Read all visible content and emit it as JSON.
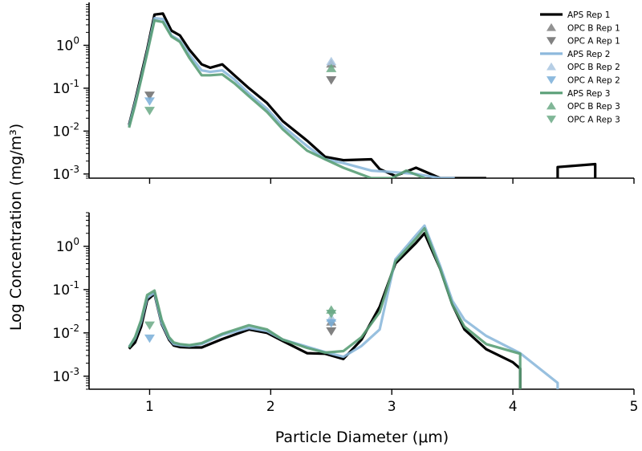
{
  "chart_data": {
    "type": "line",
    "xlabel": "Particle Diameter (μm)",
    "ylabel": "Log Concentration (mg/m³)",
    "x_ticks": [
      "1",
      "2",
      "3",
      "4",
      "5"
    ],
    "xlim": [
      0.5,
      5
    ],
    "y_scale": "log",
    "legend_placement": "top-right of upper panel",
    "panels": [
      {
        "ylim": [
          0.0008,
          10
        ],
        "y_ticks": [
          {
            "base": "10",
            "exp": "0"
          },
          {
            "base": "10",
            "exp": "-1"
          },
          {
            "base": "10",
            "exp": "-2"
          },
          {
            "base": "10",
            "exp": "-3"
          }
        ],
        "lines": [
          {
            "name": "APS Rep 1",
            "color": "#000000",
            "width": 3.2,
            "points": [
              [
                0.83,
                0.014
              ],
              [
                0.88,
                0.05
              ],
              [
                0.93,
                0.2
              ],
              [
                0.98,
                0.8
              ],
              [
                1.04,
                5.2
              ],
              [
                1.11,
                5.5
              ],
              [
                1.18,
                2.2
              ],
              [
                1.25,
                1.7
              ],
              [
                1.33,
                0.78
              ],
              [
                1.43,
                0.36
              ],
              [
                1.5,
                0.3
              ],
              [
                1.6,
                0.36
              ],
              [
                1.7,
                0.2
              ],
              [
                1.82,
                0.1
              ],
              [
                1.97,
                0.045
              ],
              [
                2.1,
                0.017
              ],
              [
                2.3,
                0.006
              ],
              [
                2.45,
                0.0025
              ],
              [
                2.6,
                0.0021
              ],
              [
                2.83,
                0.0022
              ],
              [
                2.9,
                0.0013
              ],
              [
                3.03,
                0.0009
              ],
              [
                3.2,
                0.0014
              ],
              [
                3.4,
                0.0008
              ],
              [
                3.6,
                0.0006
              ],
              [
                3.78,
                0.00045
              ],
              [
                3.78,
                0.0001
              ]
            ]
          },
          {
            "name": "APS Rep 1 (tail)",
            "color": "#000000",
            "width": 3.2,
            "points": [
              [
                4.37,
                0.0001
              ],
              [
                4.37,
                0.00145
              ],
              [
                4.68,
                0.0017
              ],
              [
                4.68,
                0.0001
              ]
            ]
          },
          {
            "name": "APS Rep 2",
            "color": "#8db9dc",
            "width": 3.2,
            "points": [
              [
                0.83,
                0.013
              ],
              [
                0.88,
                0.045
              ],
              [
                0.93,
                0.17
              ],
              [
                0.98,
                0.7
              ],
              [
                1.04,
                4.3
              ],
              [
                1.11,
                4.1
              ],
              [
                1.18,
                1.7
              ],
              [
                1.25,
                1.3
              ],
              [
                1.33,
                0.6
              ],
              [
                1.43,
                0.26
              ],
              [
                1.5,
                0.24
              ],
              [
                1.6,
                0.26
              ],
              [
                1.7,
                0.16
              ],
              [
                1.82,
                0.075
              ],
              [
                1.97,
                0.033
              ],
              [
                2.1,
                0.013
              ],
              [
                2.3,
                0.0045
              ],
              [
                2.45,
                0.0022
              ],
              [
                2.6,
                0.0018
              ],
              [
                2.83,
                0.0012
              ],
              [
                3.03,
                0.0011
              ],
              [
                3.2,
                0.001
              ],
              [
                3.4,
                0.0006
              ],
              [
                3.52,
                0.0004
              ],
              [
                3.52,
                0.0001
              ]
            ]
          },
          {
            "name": "APS Rep 3",
            "color": "#5a9f77",
            "width": 3.2,
            "points": [
              [
                0.83,
                0.012
              ],
              [
                0.88,
                0.04
              ],
              [
                0.93,
                0.16
              ],
              [
                0.98,
                0.65
              ],
              [
                1.04,
                3.8
              ],
              [
                1.11,
                3.5
              ],
              [
                1.18,
                1.6
              ],
              [
                1.25,
                1.2
              ],
              [
                1.33,
                0.5
              ],
              [
                1.43,
                0.2
              ],
              [
                1.5,
                0.2
              ],
              [
                1.6,
                0.21
              ],
              [
                1.7,
                0.13
              ],
              [
                1.82,
                0.065
              ],
              [
                1.97,
                0.028
              ],
              [
                2.1,
                0.011
              ],
              [
                2.3,
                0.0035
              ],
              [
                2.45,
                0.0022
              ],
              [
                2.6,
                0.0014
              ],
              [
                2.83,
                0.00065
              ],
              [
                2.9,
                0.0005
              ],
              [
                3.0,
                0.00075
              ],
              [
                3.12,
                0.0012
              ],
              [
                3.27,
                0.0005
              ],
              [
                3.27,
                0.0001
              ]
            ]
          }
        ],
        "markers": [
          {
            "name": "OPC B Rep 1",
            "shape": "up",
            "color": "#7f7f7f",
            "points": [
              [
                2.5,
                0.37
              ]
            ]
          },
          {
            "name": "OPC A Rep 1",
            "shape": "down",
            "color": "#6b6b6b",
            "points": [
              [
                1.0,
                0.068
              ],
              [
                2.5,
                0.155
              ]
            ]
          },
          {
            "name": "OPC B Rep 2",
            "shape": "up",
            "color": "#a9c6e0",
            "points": [
              [
                2.5,
                0.42
              ]
            ]
          },
          {
            "name": "OPC A Rep 2",
            "shape": "down",
            "color": "#79aed8",
            "points": [
              [
                1.0,
                0.05
              ]
            ]
          },
          {
            "name": "OPC B Rep 3",
            "shape": "up",
            "color": "#6aa985",
            "points": [
              [
                2.5,
                0.29
              ]
            ]
          },
          {
            "name": "OPC A Rep 3",
            "shape": "down",
            "color": "#6aa985",
            "points": [
              [
                1.0,
                0.03
              ]
            ]
          }
        ]
      },
      {
        "ylim": [
          0.0005,
          6
        ],
        "y_ticks": [
          {
            "base": "10",
            "exp": "0"
          },
          {
            "base": "10",
            "exp": "-1"
          },
          {
            "base": "10",
            "exp": "-2"
          },
          {
            "base": "10",
            "exp": "-3"
          }
        ],
        "lines": [
          {
            "name": "APS Rep 1",
            "color": "#000000",
            "width": 3.2,
            "points": [
              [
                0.83,
                0.0043
              ],
              [
                0.88,
                0.006
              ],
              [
                0.93,
                0.014
              ],
              [
                0.98,
                0.057
              ],
              [
                1.04,
                0.08
              ],
              [
                1.1,
                0.016
              ],
              [
                1.16,
                0.007
              ],
              [
                1.2,
                0.0051
              ],
              [
                1.25,
                0.0047
              ],
              [
                1.33,
                0.0046
              ],
              [
                1.43,
                0.0046
              ],
              [
                1.6,
                0.0072
              ],
              [
                1.82,
                0.012
              ],
              [
                1.97,
                0.01
              ],
              [
                2.1,
                0.0065
              ],
              [
                2.3,
                0.0034
              ],
              [
                2.45,
                0.0033
              ],
              [
                2.6,
                0.0025
              ],
              [
                2.75,
                0.007
              ],
              [
                2.9,
                0.04
              ],
              [
                3.03,
                0.4
              ],
              [
                3.2,
                1.2
              ],
              [
                3.27,
                2.0
              ],
              [
                3.4,
                0.3
              ],
              [
                3.5,
                0.045
              ],
              [
                3.6,
                0.012
              ],
              [
                3.78,
                0.0042
              ],
              [
                4.0,
                0.0021
              ],
              [
                4.06,
                0.0015
              ],
              [
                4.06,
                0.0002
              ]
            ]
          },
          {
            "name": "APS Rep 2",
            "color": "#8db9dc",
            "width": 3.2,
            "points": [
              [
                0.83,
                0.0048
              ],
              [
                0.88,
                0.0075
              ],
              [
                0.93,
                0.018
              ],
              [
                0.98,
                0.065
              ],
              [
                1.04,
                0.085
              ],
              [
                1.1,
                0.017
              ],
              [
                1.16,
                0.0075
              ],
              [
                1.2,
                0.0055
              ],
              [
                1.25,
                0.0052
              ],
              [
                1.33,
                0.005
              ],
              [
                1.43,
                0.0055
              ],
              [
                1.6,
                0.009
              ],
              [
                1.82,
                0.013
              ],
              [
                1.97,
                0.011
              ],
              [
                2.1,
                0.007
              ],
              [
                2.3,
                0.0048
              ],
              [
                2.45,
                0.0036
              ],
              [
                2.6,
                0.0028
              ],
              [
                2.75,
                0.005
              ],
              [
                2.9,
                0.012
              ],
              [
                3.03,
                0.5
              ],
              [
                3.2,
                1.8
              ],
              [
                3.27,
                3.0
              ],
              [
                3.4,
                0.35
              ],
              [
                3.5,
                0.055
              ],
              [
                3.6,
                0.02
              ],
              [
                3.78,
                0.0085
              ],
              [
                4.06,
                0.0034
              ],
              [
                4.37,
                0.0007
              ],
              [
                4.37,
                0.0002
              ]
            ]
          },
          {
            "name": "APS Rep 3",
            "color": "#5a9f77",
            "width": 3.2,
            "points": [
              [
                0.83,
                0.0046
              ],
              [
                0.88,
                0.008
              ],
              [
                0.93,
                0.02
              ],
              [
                0.98,
                0.075
              ],
              [
                1.04,
                0.095
              ],
              [
                1.1,
                0.02
              ],
              [
                1.16,
                0.008
              ],
              [
                1.2,
                0.006
              ],
              [
                1.25,
                0.0055
              ],
              [
                1.33,
                0.0052
              ],
              [
                1.43,
                0.0058
              ],
              [
                1.6,
                0.0095
              ],
              [
                1.82,
                0.015
              ],
              [
                1.97,
                0.012
              ],
              [
                2.1,
                0.007
              ],
              [
                2.3,
                0.0045
              ],
              [
                2.45,
                0.0035
              ],
              [
                2.6,
                0.0038
              ],
              [
                2.75,
                0.008
              ],
              [
                2.9,
                0.03
              ],
              [
                3.03,
                0.45
              ],
              [
                3.2,
                1.5
              ],
              [
                3.27,
                2.6
              ],
              [
                3.4,
                0.3
              ],
              [
                3.5,
                0.045
              ],
              [
                3.6,
                0.014
              ],
              [
                3.78,
                0.0055
              ],
              [
                4.06,
                0.0033
              ],
              [
                4.06,
                0.0002
              ]
            ]
          }
        ],
        "markers": [
          {
            "name": "OPC B Rep 1",
            "shape": "up",
            "color": "#7f7f7f",
            "points": [
              [
                2.5,
                0.018
              ]
            ]
          },
          {
            "name": "OPC A Rep 1",
            "shape": "down",
            "color": "#6b6b6b",
            "points": [
              [
                2.5,
                0.011
              ]
            ]
          },
          {
            "name": "OPC B Rep 2",
            "shape": "up",
            "color": "#a9c6e0",
            "points": [
              [
                2.5,
                0.022
              ]
            ]
          },
          {
            "name": "OPC A Rep 2",
            "shape": "down",
            "color": "#79aed8",
            "points": [
              [
                1.0,
                0.0075
              ],
              [
                2.5,
                0.017
              ]
            ]
          },
          {
            "name": "OPC B Rep 3",
            "shape": "up",
            "color": "#6aa985",
            "points": [
              [
                2.5,
                0.034
              ]
            ]
          },
          {
            "name": "OPC A Rep 3",
            "shape": "down",
            "color": "#6aa985",
            "points": [
              [
                1.0,
                0.015
              ],
              [
                2.5,
                0.028
              ]
            ]
          }
        ]
      }
    ],
    "legend": [
      {
        "label": "APS Rep 1",
        "kind": "line",
        "color": "#000000"
      },
      {
        "label": "OPC B Rep 1",
        "kind": "up",
        "color": "#7f7f7f"
      },
      {
        "label": "OPC A Rep 1",
        "kind": "down",
        "color": "#6b6b6b"
      },
      {
        "label": "APS Rep 2",
        "kind": "line",
        "color": "#8db9dc"
      },
      {
        "label": "OPC B Rep 2",
        "kind": "up",
        "color": "#a9c6e0"
      },
      {
        "label": "OPC A Rep 2",
        "kind": "down",
        "color": "#79aed8"
      },
      {
        "label": "APS Rep 3",
        "kind": "line",
        "color": "#5a9f77"
      },
      {
        "label": "OPC B Rep 3",
        "kind": "up",
        "color": "#6aa985"
      },
      {
        "label": "OPC A Rep 3",
        "kind": "down",
        "color": "#6aa985"
      }
    ]
  }
}
